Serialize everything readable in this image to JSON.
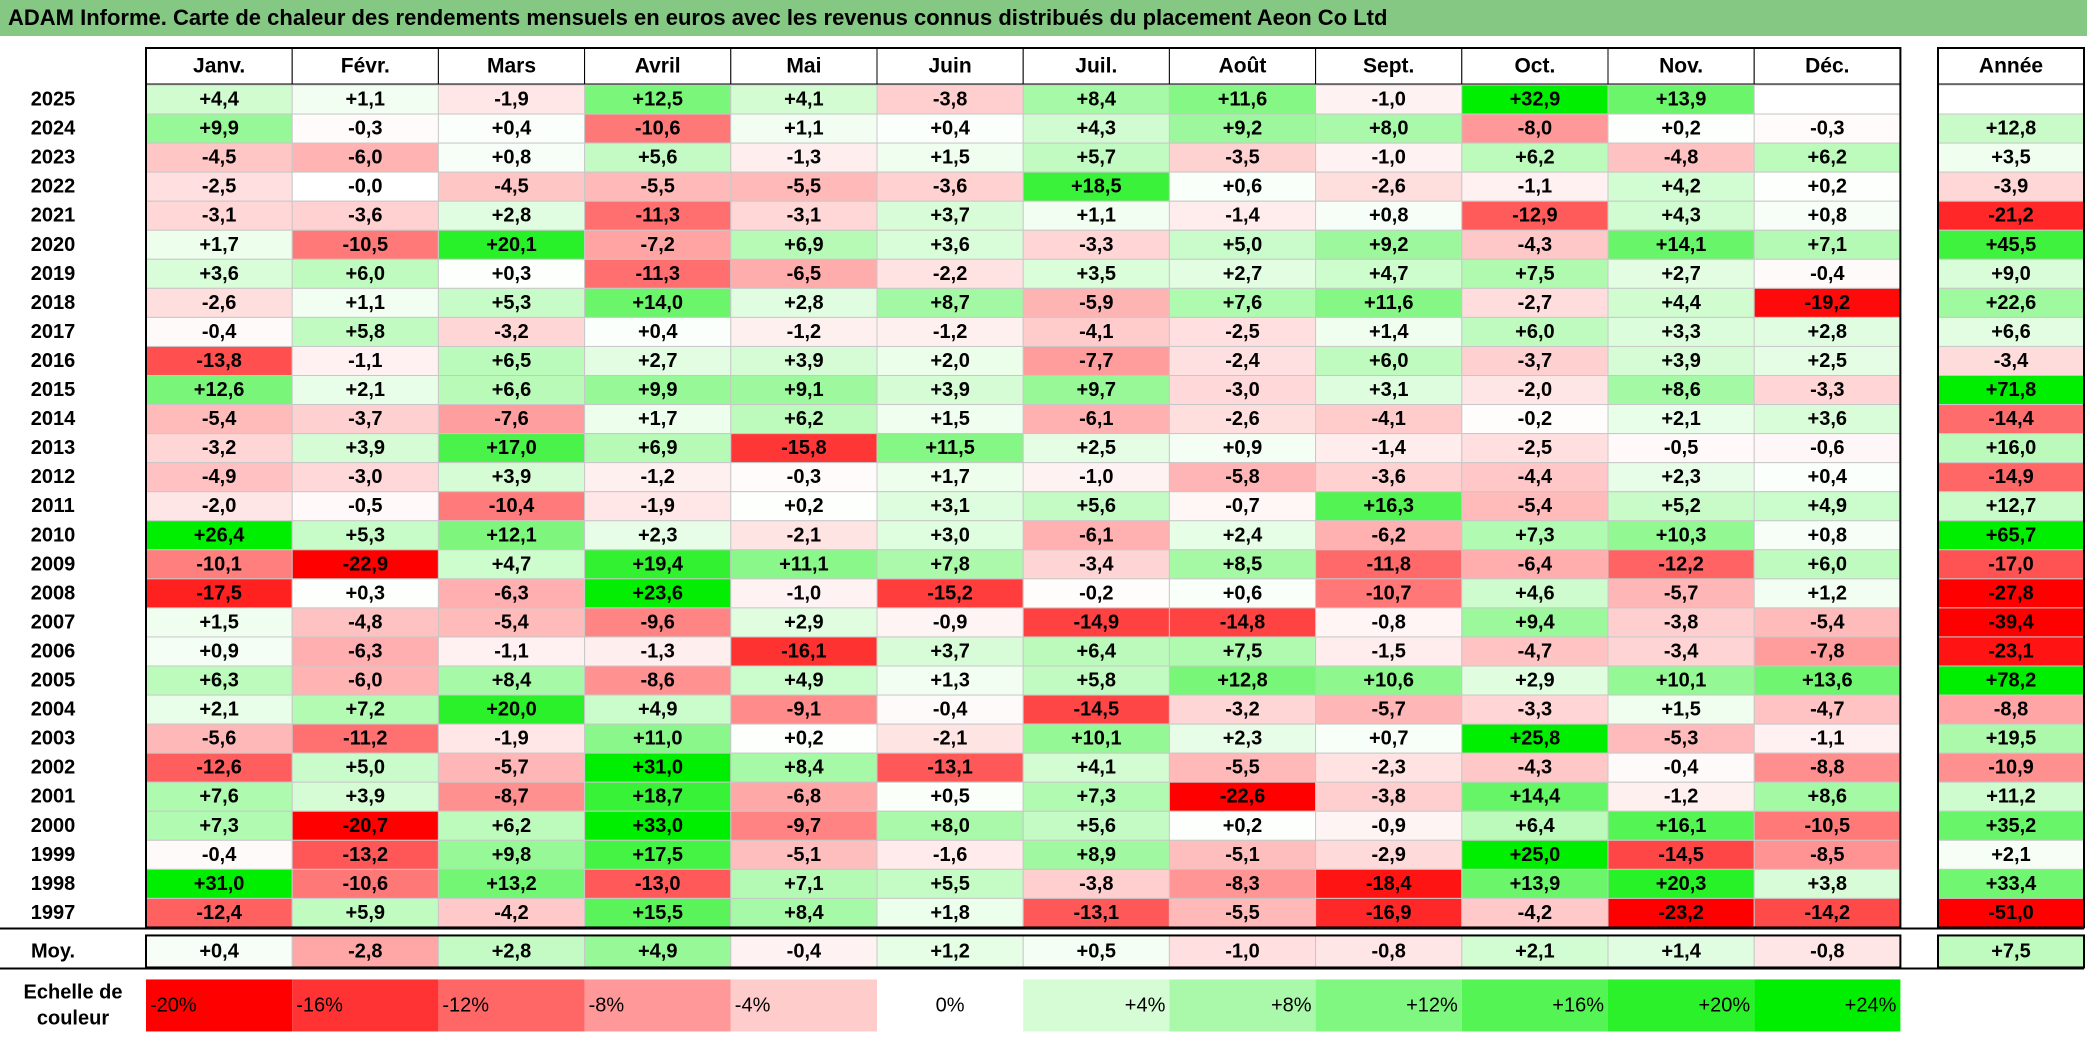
{
  "title": "ADAM Informe. Carte de chaleur des rendements mensuels en euros avec les revenus connus distribués du placement Aeon Co Ltd",
  "colors": {
    "title_bg": "#84c884",
    "negative_max": "#ff0000",
    "neutral": "#ffffff",
    "positive_max": "#00ee00",
    "grid": "#c8c8c8",
    "border": "#000000"
  },
  "chart_data": {
    "type": "heatmap",
    "months": [
      "Janv.",
      "Févr.",
      "Mars",
      "Avril",
      "Mai",
      "Juin",
      "Juil.",
      "Août",
      "Sept.",
      "Oct.",
      "Nov.",
      "Déc."
    ],
    "year_header": "Année",
    "color_scale_min": -20,
    "color_scale_max": 24,
    "rows": [
      {
        "year": "2025",
        "values": [
          "+4,4",
          "+1,1",
          "-1,9",
          "+12,5",
          "+4,1",
          "-3,8",
          "+8,4",
          "+11,6",
          "-1,0",
          "+32,9",
          "+13,9",
          ""
        ],
        "annual": ""
      },
      {
        "year": "2024",
        "values": [
          "+9,9",
          "-0,3",
          "+0,4",
          "-10,6",
          "+1,1",
          "+0,4",
          "+4,3",
          "+9,2",
          "+8,0",
          "-8,0",
          "+0,2",
          "-0,3"
        ],
        "annual": "+12,8"
      },
      {
        "year": "2023",
        "values": [
          "-4,5",
          "-6,0",
          "+0,8",
          "+5,6",
          "-1,3",
          "+1,5",
          "+5,7",
          "-3,5",
          "-1,0",
          "+6,2",
          "-4,8",
          "+6,2"
        ],
        "annual": "+3,5"
      },
      {
        "year": "2022",
        "values": [
          "-2,5",
          "-0,0",
          "-4,5",
          "-5,5",
          "-5,5",
          "-3,6",
          "+18,5",
          "+0,6",
          "-2,6",
          "-1,1",
          "+4,2",
          "+0,2"
        ],
        "annual": "-3,9"
      },
      {
        "year": "2021",
        "values": [
          "-3,1",
          "-3,6",
          "+2,8",
          "-11,3",
          "-3,1",
          "+3,7",
          "+1,1",
          "-1,4",
          "+0,8",
          "-12,9",
          "+4,3",
          "+0,8"
        ],
        "annual": "-21,2"
      },
      {
        "year": "2020",
        "values": [
          "+1,7",
          "-10,5",
          "+20,1",
          "-7,2",
          "+6,9",
          "+3,6",
          "-3,3",
          "+5,0",
          "+9,2",
          "-4,3",
          "+14,1",
          "+7,1"
        ],
        "annual": "+45,5"
      },
      {
        "year": "2019",
        "values": [
          "+3,6",
          "+6,0",
          "+0,3",
          "-11,3",
          "-6,5",
          "-2,2",
          "+3,5",
          "+2,7",
          "+4,7",
          "+7,5",
          "+2,7",
          "-0,4"
        ],
        "annual": "+9,0"
      },
      {
        "year": "2018",
        "values": [
          "-2,6",
          "+1,1",
          "+5,3",
          "+14,0",
          "+2,8",
          "+8,7",
          "-5,9",
          "+7,6",
          "+11,6",
          "-2,7",
          "+4,4",
          "-19,2"
        ],
        "annual": "+22,6"
      },
      {
        "year": "2017",
        "values": [
          "-0,4",
          "+5,8",
          "-3,2",
          "+0,4",
          "-1,2",
          "-1,2",
          "-4,1",
          "-2,5",
          "+1,4",
          "+6,0",
          "+3,3",
          "+2,8"
        ],
        "annual": "+6,6"
      },
      {
        "year": "2016",
        "values": [
          "-13,8",
          "-1,1",
          "+6,5",
          "+2,7",
          "+3,9",
          "+2,0",
          "-7,7",
          "-2,4",
          "+6,0",
          "-3,7",
          "+3,9",
          "+2,5"
        ],
        "annual": "-3,4"
      },
      {
        "year": "2015",
        "values": [
          "+12,6",
          "+2,1",
          "+6,6",
          "+9,9",
          "+9,1",
          "+3,9",
          "+9,7",
          "-3,0",
          "+3,1",
          "-2,0",
          "+8,6",
          "-3,3"
        ],
        "annual": "+71,8"
      },
      {
        "year": "2014",
        "values": [
          "-5,4",
          "-3,7",
          "-7,6",
          "+1,7",
          "+6,2",
          "+1,5",
          "-6,1",
          "-2,6",
          "-4,1",
          "-0,2",
          "+2,1",
          "+3,6"
        ],
        "annual": "-14,4"
      },
      {
        "year": "2013",
        "values": [
          "-3,2",
          "+3,9",
          "+17,0",
          "+6,9",
          "-15,8",
          "+11,5",
          "+2,5",
          "+0,9",
          "-1,4",
          "-2,5",
          "-0,5",
          "-0,6"
        ],
        "annual": "+16,0"
      },
      {
        "year": "2012",
        "values": [
          "-4,9",
          "-3,0",
          "+3,9",
          "-1,2",
          "-0,3",
          "+1,7",
          "-1,0",
          "-5,8",
          "-3,6",
          "-4,4",
          "+2,3",
          "+0,4"
        ],
        "annual": "-14,9"
      },
      {
        "year": "2011",
        "values": [
          "-2,0",
          "-0,5",
          "-10,4",
          "-1,9",
          "+0,2",
          "+3,1",
          "+5,6",
          "-0,7",
          "+16,3",
          "-5,4",
          "+5,2",
          "+4,9"
        ],
        "annual": "+12,7"
      },
      {
        "year": "2010",
        "values": [
          "+26,4",
          "+5,3",
          "+12,1",
          "+2,3",
          "-2,1",
          "+3,0",
          "-6,1",
          "+2,4",
          "-6,2",
          "+7,3",
          "+10,3",
          "+0,8"
        ],
        "annual": "+65,7"
      },
      {
        "year": "2009",
        "values": [
          "-10,1",
          "-22,9",
          "+4,7",
          "+19,4",
          "+11,1",
          "+7,8",
          "-3,4",
          "+8,5",
          "-11,8",
          "-6,4",
          "-12,2",
          "+6,0"
        ],
        "annual": "-17,0"
      },
      {
        "year": "2008",
        "values": [
          "-17,5",
          "+0,3",
          "-6,3",
          "+23,6",
          "-1,0",
          "-15,2",
          "-0,2",
          "+0,6",
          "-10,7",
          "+4,6",
          "-5,7",
          "+1,2"
        ],
        "annual": "-27,8"
      },
      {
        "year": "2007",
        "values": [
          "+1,5",
          "-4,8",
          "-5,4",
          "-9,6",
          "+2,9",
          "-0,9",
          "-14,9",
          "-14,8",
          "-0,8",
          "+9,4",
          "-3,8",
          "-5,4"
        ],
        "annual": "-39,4"
      },
      {
        "year": "2006",
        "values": [
          "+0,9",
          "-6,3",
          "-1,1",
          "-1,3",
          "-16,1",
          "+3,7",
          "+6,4",
          "+7,5",
          "-1,5",
          "-4,7",
          "-3,4",
          "-7,8"
        ],
        "annual": "-23,1"
      },
      {
        "year": "2005",
        "values": [
          "+6,3",
          "-6,0",
          "+8,4",
          "-8,6",
          "+4,9",
          "+1,3",
          "+5,8",
          "+12,8",
          "+10,6",
          "+2,9",
          "+10,1",
          "+13,6"
        ],
        "annual": "+78,2"
      },
      {
        "year": "2004",
        "values": [
          "+2,1",
          "+7,2",
          "+20,0",
          "+4,9",
          "-9,1",
          "-0,4",
          "-14,5",
          "-3,2",
          "-5,7",
          "-3,3",
          "+1,5",
          "-4,7"
        ],
        "annual": "-8,8"
      },
      {
        "year": "2003",
        "values": [
          "-5,6",
          "-11,2",
          "-1,9",
          "+11,0",
          "+0,2",
          "-2,1",
          "+10,1",
          "+2,3",
          "+0,7",
          "+25,8",
          "-5,3",
          "-1,1"
        ],
        "annual": "+19,5"
      },
      {
        "year": "2002",
        "values": [
          "-12,6",
          "+5,0",
          "-5,7",
          "+31,0",
          "+8,4",
          "-13,1",
          "+4,1",
          "-5,5",
          "-2,3",
          "-4,3",
          "-0,4",
          "-8,8"
        ],
        "annual": "-10,9"
      },
      {
        "year": "2001",
        "values": [
          "+7,6",
          "+3,9",
          "-8,7",
          "+18,7",
          "-6,8",
          "+0,5",
          "+7,3",
          "-22,6",
          "-3,8",
          "+14,4",
          "-1,2",
          "+8,6"
        ],
        "annual": "+11,2"
      },
      {
        "year": "2000",
        "values": [
          "+7,3",
          "-20,7",
          "+6,2",
          "+33,0",
          "-9,7",
          "+8,0",
          "+5,6",
          "+0,2",
          "-0,9",
          "+6,4",
          "+16,1",
          "-10,5"
        ],
        "annual": "+35,2"
      },
      {
        "year": "1999",
        "values": [
          "-0,4",
          "-13,2",
          "+9,8",
          "+17,5",
          "-5,1",
          "-1,6",
          "+8,9",
          "-5,1",
          "-2,9",
          "+25,0",
          "-14,5",
          "-8,5"
        ],
        "annual": "+2,1"
      },
      {
        "year": "1998",
        "values": [
          "+31,0",
          "-10,6",
          "+13,2",
          "-13,0",
          "+7,1",
          "+5,5",
          "-3,8",
          "-8,3",
          "-18,4",
          "+13,9",
          "+20,3",
          "+3,8"
        ],
        "annual": "+33,4"
      },
      {
        "year": "1997",
        "values": [
          "-12,4",
          "+5,9",
          "-4,2",
          "+15,5",
          "+8,4",
          "+1,8",
          "-13,1",
          "-5,5",
          "-16,9",
          "-4,2",
          "-23,2",
          "-14,2"
        ],
        "annual": "-51,0"
      }
    ],
    "average": {
      "label": "Moy.",
      "values": [
        "+0,4",
        "-2,8",
        "+2,8",
        "+4,9",
        "-0,4",
        "+1,2",
        "+0,5",
        "-1,0",
        "-0,8",
        "+2,1",
        "+1,4",
        "-0,8"
      ],
      "annual": "+7,5"
    },
    "legend": {
      "label_line1": "Echelle de",
      "label_line2": "couleur",
      "items": [
        {
          "text": "-20%",
          "value": -20
        },
        {
          "text": "-16%",
          "value": -16
        },
        {
          "text": "-12%",
          "value": -12
        },
        {
          "text": "-8%",
          "value": -8
        },
        {
          "text": "-4%",
          "value": -4
        },
        {
          "text": "0%",
          "value": 0
        },
        {
          "text": "+4%",
          "value": 4
        },
        {
          "text": "+8%",
          "value": 8
        },
        {
          "text": "+12%",
          "value": 12
        },
        {
          "text": "+16%",
          "value": 16
        },
        {
          "text": "+20%",
          "value": 20
        },
        {
          "text": "+24%",
          "value": 24
        }
      ]
    }
  }
}
